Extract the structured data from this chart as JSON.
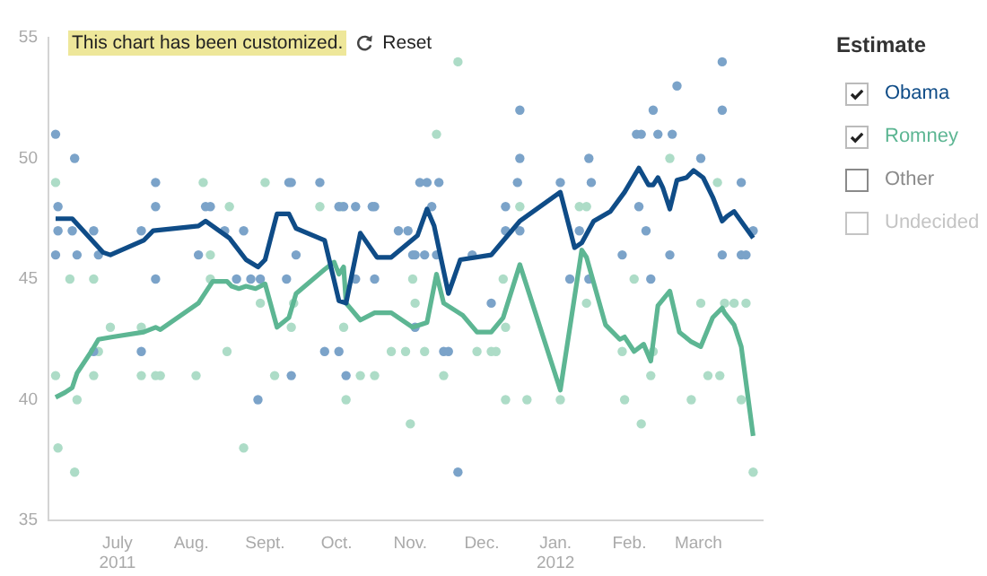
{
  "chart_data": {
    "type": "line",
    "annotations": [
      "This chart has been customized.",
      "Reset"
    ],
    "legend": "right",
    "legend_title": "Estimate",
    "xlim": [
      "2011-06-02",
      "2012-03-28"
    ],
    "xticks": [
      {
        "value": "2011-07-01",
        "label": "July\n2011"
      },
      {
        "value": "2011-08-01",
        "label": "Aug."
      },
      {
        "value": "2011-09-01",
        "label": "Sept."
      },
      {
        "value": "2011-10-01",
        "label": "Oct."
      },
      {
        "value": "2011-11-01",
        "label": "Nov."
      },
      {
        "value": "2011-12-01",
        "label": "Dec."
      },
      {
        "value": "2012-01-01",
        "label": "Jan.\n2012"
      },
      {
        "value": "2012-02-01",
        "label": "Feb."
      },
      {
        "value": "2012-03-01",
        "label": "March"
      }
    ],
    "ylim": [
      35,
      55
    ],
    "yticks": [
      35,
      40,
      45,
      50,
      55
    ],
    "series": [
      {
        "type": "scatter",
        "marker": "circle",
        "color": "#7ba3c9",
        "x": [
          "2011-06-05",
          "2011-06-05",
          "2011-06-06",
          "2011-06-06",
          "2011-06-13",
          "2011-06-12",
          "2011-06-14",
          "2011-06-21",
          "2011-06-21",
          "2011-06-23",
          "2011-07-11",
          "2011-07-11",
          "2011-07-17",
          "2011-07-17",
          "2011-07-17",
          "2011-08-04",
          "2011-08-07",
          "2011-08-09",
          "2011-08-15",
          "2011-08-20",
          "2011-08-23",
          "2011-08-26",
          "2011-08-29",
          "2011-08-30",
          "2011-09-11",
          "2011-09-12",
          "2011-09-12",
          "2011-09-10",
          "2011-09-14",
          "2011-09-24",
          "2011-09-26",
          "2011-10-02",
          "2011-10-04",
          "2011-10-02",
          "2011-10-05",
          "2011-10-09",
          "2011-10-09",
          "2011-10-17",
          "2011-10-17",
          "2011-10-27",
          "2011-10-31",
          "2011-11-02",
          "2011-10-16",
          "2011-11-05",
          "2011-11-08",
          "2011-11-13",
          "2011-11-10",
          "2011-11-03",
          "2011-11-07",
          "2011-11-12",
          "2011-11-03",
          "2011-11-15",
          "2011-11-17",
          "2011-11-21",
          "2011-11-27",
          "2011-12-05",
          "2011-12-11",
          "2011-12-11",
          "2011-12-17",
          "2011-12-17",
          "2011-12-17",
          "2011-12-16",
          "2012-01-03",
          "2012-01-07",
          "2012-01-11",
          "2012-01-15",
          "2012-01-16",
          "2012-01-15",
          "2012-01-29",
          "2012-02-05",
          "2012-02-04",
          "2012-02-06",
          "2012-02-11",
          "2012-02-13",
          "2012-02-10",
          "2012-02-08",
          "2012-02-18",
          "2012-02-19",
          "2012-02-21",
          "2012-03-02",
          "2012-03-11",
          "2012-03-11",
          "2012-03-11",
          "2012-03-19",
          "2012-03-19",
          "2012-03-21",
          "2012-03-24"
        ],
        "values": [
          51,
          46,
          47,
          48,
          50,
          47,
          46,
          47,
          42,
          46,
          47,
          42,
          49,
          48,
          45,
          46,
          48,
          48,
          47,
          45,
          47,
          45,
          40,
          45,
          49,
          49,
          41,
          45,
          46,
          49,
          42,
          48,
          48,
          42,
          41,
          48,
          45,
          48,
          45,
          47,
          47,
          46,
          48,
          49,
          49,
          49,
          48,
          46,
          46,
          46,
          43,
          42,
          42,
          37,
          46,
          44,
          48,
          47,
          52,
          50,
          47,
          49,
          49,
          45,
          47,
          50,
          49,
          45,
          46,
          48,
          51,
          51,
          52,
          51,
          45,
          47,
          46,
          51,
          53,
          50,
          54,
          52,
          46,
          49,
          46,
          46,
          47
        ]
      },
      {
        "type": "scatter",
        "marker": "circle",
        "color": "#addcc7",
        "x": [
          "2011-06-05",
          "2011-06-05",
          "2011-06-06",
          "2011-06-11",
          "2011-06-13",
          "2011-06-14",
          "2011-06-21",
          "2011-06-21",
          "2011-06-23",
          "2011-06-28",
          "2011-07-11",
          "2011-07-11",
          "2011-07-17",
          "2011-07-19",
          "2011-08-03",
          "2011-08-06",
          "2011-08-09",
          "2011-08-09",
          "2011-08-17",
          "2011-08-16",
          "2011-08-23",
          "2011-08-30",
          "2011-09-01",
          "2011-09-05",
          "2011-09-12",
          "2011-09-13",
          "2011-09-24",
          "2011-10-03",
          "2011-10-04",
          "2011-10-05",
          "2011-10-11",
          "2011-10-17",
          "2011-10-24",
          "2011-10-30",
          "2011-11-01",
          "2011-11-02",
          "2011-11-03",
          "2011-11-07",
          "2011-11-12",
          "2011-11-15",
          "2011-11-21",
          "2011-11-29",
          "2011-12-05",
          "2011-12-07",
          "2011-12-11",
          "2011-12-11",
          "2011-12-10",
          "2011-12-17",
          "2011-12-20",
          "2012-01-03",
          "2012-01-11",
          "2012-01-14",
          "2012-01-14",
          "2012-01-29",
          "2012-01-30",
          "2012-02-03",
          "2012-02-06",
          "2012-02-10",
          "2012-02-11",
          "2012-02-18",
          "2012-02-27",
          "2012-03-02",
          "2012-03-05",
          "2012-03-10",
          "2012-03-09",
          "2012-03-12",
          "2012-03-16",
          "2012-03-21",
          "2012-03-19",
          "2012-03-24"
        ],
        "values": [
          49,
          41,
          38,
          45,
          37,
          40,
          45,
          41,
          42,
          43,
          43,
          41,
          41,
          41,
          41,
          49,
          46,
          45,
          48,
          42,
          38,
          44,
          49,
          41,
          43,
          44,
          48,
          48,
          43,
          40,
          41,
          41,
          42,
          42,
          39,
          45,
          44,
          42,
          51,
          41,
          54,
          42,
          42,
          42,
          43,
          40,
          45,
          48,
          40,
          40,
          48,
          48,
          44,
          42,
          40,
          45,
          39,
          41,
          42,
          50,
          40,
          44,
          41,
          41,
          49,
          44,
          44,
          44,
          40,
          37
        ]
      },
      {
        "type": "line",
        "name": "Obama",
        "marker": "none",
        "color": "#0f4c87",
        "x": [
          "2011-06-05",
          "2011-06-12",
          "2011-06-25",
          "2011-06-28",
          "2011-07-12",
          "2011-07-16",
          "2011-08-04",
          "2011-08-07",
          "2011-08-17",
          "2011-08-24",
          "2011-08-29",
          "2011-09-01",
          "2011-09-06",
          "2011-09-11",
          "2011-09-14",
          "2011-09-26",
          "2011-10-02",
          "2011-10-05",
          "2011-10-11",
          "2011-10-18",
          "2011-10-24",
          "2011-11-04",
          "2011-11-08",
          "2011-11-11",
          "2011-11-17",
          "2011-11-22",
          "2011-12-05",
          "2011-12-11",
          "2011-12-17",
          "2012-01-03",
          "2012-01-09",
          "2012-01-12",
          "2012-01-17",
          "2012-01-24",
          "2012-01-30",
          "2012-02-05",
          "2012-02-09",
          "2012-02-11",
          "2012-02-13",
          "2012-02-15",
          "2012-02-18",
          "2012-02-21",
          "2012-02-25",
          "2012-02-28",
          "2012-03-03",
          "2012-03-07",
          "2012-03-11",
          "2012-03-13",
          "2012-03-16",
          "2012-03-24"
        ],
        "values": [
          47.5,
          47.5,
          46.1,
          46.0,
          46.6,
          47.0,
          47.2,
          47.4,
          46.7,
          45.8,
          45.5,
          45.8,
          47.7,
          47.7,
          47.1,
          46.6,
          44.1,
          44.0,
          46.9,
          45.9,
          45.9,
          46.8,
          47.9,
          47.2,
          44.4,
          45.8,
          46.0,
          46.7,
          47.4,
          48.6,
          46.3,
          46.5,
          47.4,
          47.8,
          48.6,
          49.6,
          48.9,
          48.9,
          49.2,
          48.8,
          47.9,
          49.1,
          49.2,
          49.5,
          49.2,
          48.4,
          47.4,
          47.6,
          47.8,
          46.7
        ]
      },
      {
        "type": "line",
        "name": "Romney",
        "marker": "none",
        "color": "#5db693",
        "x": [
          "2011-06-05",
          "2011-06-09",
          "2011-06-12",
          "2011-06-14",
          "2011-06-20",
          "2011-06-23",
          "2011-06-29",
          "2011-07-12",
          "2011-07-17",
          "2011-07-19",
          "2011-08-04",
          "2011-08-10",
          "2011-08-16",
          "2011-08-18",
          "2011-08-21",
          "2011-08-24",
          "2011-08-28",
          "2011-09-01",
          "2011-09-06",
          "2011-09-11",
          "2011-09-14",
          "2011-09-26",
          "2011-09-30",
          "2011-10-02",
          "2011-10-04",
          "2011-10-05",
          "2011-10-11",
          "2011-10-17",
          "2011-10-24",
          "2011-11-02",
          "2011-11-08",
          "2011-11-12",
          "2011-11-15",
          "2011-11-23",
          "2011-11-29",
          "2011-12-05",
          "2011-12-10",
          "2011-12-17",
          "2012-01-03",
          "2012-01-12",
          "2012-01-14",
          "2012-01-22",
          "2012-01-28",
          "2012-01-30",
          "2012-02-03",
          "2012-02-07",
          "2012-02-10",
          "2012-02-13",
          "2012-02-18",
          "2012-02-22",
          "2012-02-27",
          "2012-03-02",
          "2012-03-07",
          "2012-03-11",
          "2012-03-12",
          "2012-03-16",
          "2012-03-19",
          "2012-03-24"
        ],
        "values": [
          40.1,
          40.3,
          40.5,
          41.1,
          42.0,
          42.5,
          42.6,
          42.8,
          43.0,
          42.9,
          44.0,
          44.9,
          44.9,
          44.7,
          44.6,
          44.7,
          44.6,
          44.8,
          43.0,
          43.4,
          44.4,
          45.4,
          45.7,
          45.2,
          45.5,
          44.0,
          43.3,
          43.6,
          43.6,
          43.0,
          43.2,
          45.2,
          44.0,
          43.5,
          42.8,
          42.8,
          43.4,
          45.6,
          40.4,
          46.2,
          45.9,
          43.1,
          42.5,
          42.6,
          42.0,
          42.3,
          41.6,
          43.9,
          44.5,
          42.8,
          42.4,
          42.2,
          43.4,
          43.8,
          43.6,
          43.1,
          42.2,
          38.5
        ]
      },
      {
        "type": "line",
        "name": "Other",
        "marker": "none",
        "color": "#8a8a8a"
      },
      {
        "type": "line",
        "name": "Undecided",
        "marker": "none",
        "color": "#c4c4c4"
      }
    ]
  }
}
